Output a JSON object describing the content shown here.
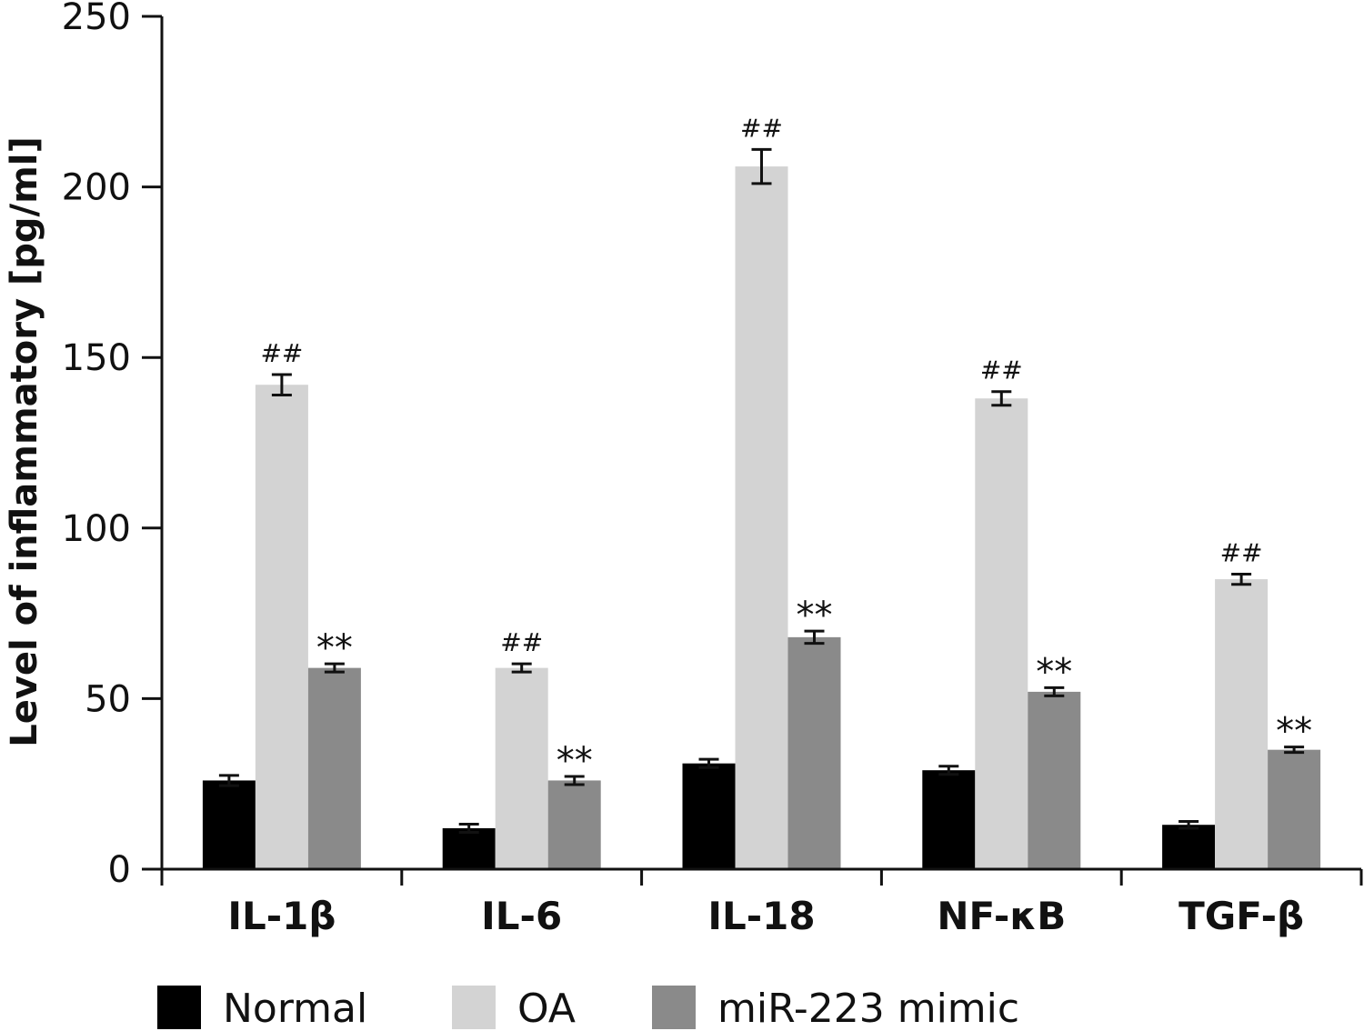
{
  "chart_data": {
    "type": "bar",
    "title": "",
    "xlabel": "",
    "ylabel": "Level of inflammatory [pg/ml]",
    "ylim": [
      0,
      250
    ],
    "yticks": [
      0,
      50,
      100,
      150,
      200,
      250
    ],
    "grid": false,
    "legend_position": "bottom",
    "categories": [
      "IL-1β",
      "IL-6",
      "IL-18",
      "NF-κB",
      "TGF-β"
    ],
    "series": [
      {
        "name": "Normal",
        "color": "#000000",
        "values": [
          26,
          12,
          31,
          29,
          13
        ],
        "errors": [
          1.5,
          1.2,
          1.2,
          1.2,
          1.0
        ],
        "annotations": [
          "",
          "",
          "",
          "",
          ""
        ]
      },
      {
        "name": "OA",
        "color": "#d3d3d3",
        "values": [
          142,
          59,
          206,
          138,
          85
        ],
        "errors": [
          3.0,
          1.2,
          5.0,
          2.0,
          1.5
        ],
        "annotations": [
          "##",
          "##",
          "##",
          "##",
          "##"
        ]
      },
      {
        "name": "miR-223 mimic",
        "color": "#8a8a8a",
        "values": [
          59,
          26,
          68,
          52,
          35
        ],
        "errors": [
          1.2,
          1.2,
          1.8,
          1.2,
          0.8
        ],
        "annotations": [
          "**",
          "**",
          "**",
          "**",
          "**"
        ]
      }
    ]
  }
}
